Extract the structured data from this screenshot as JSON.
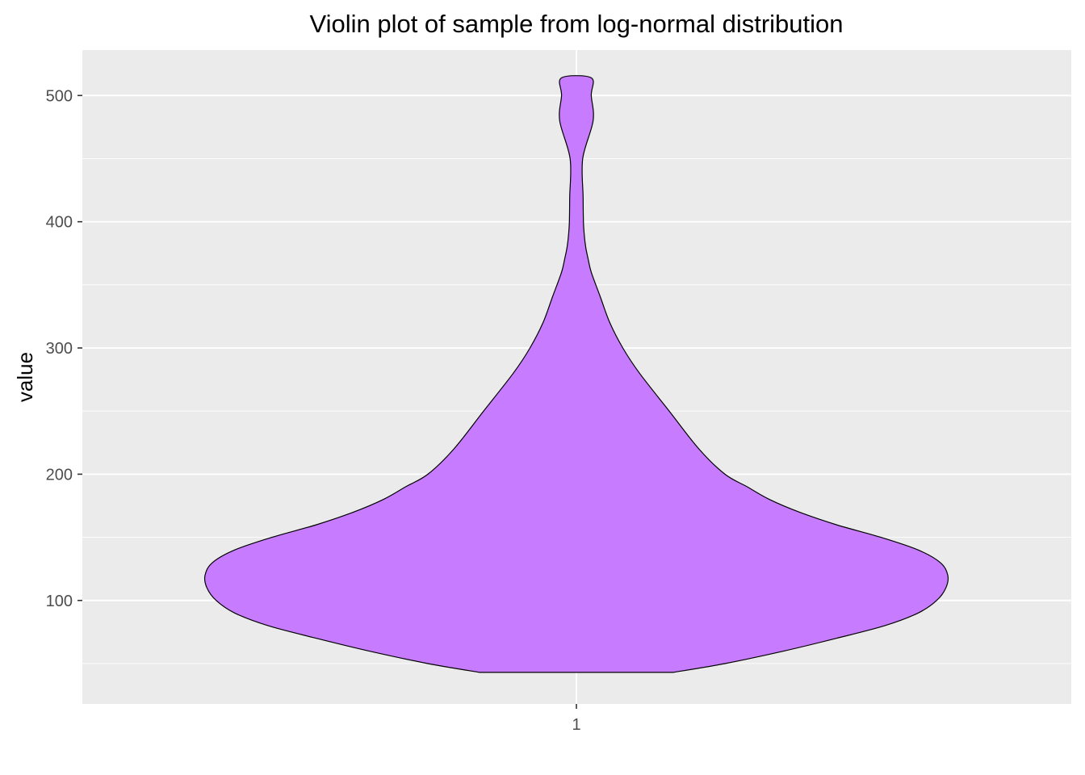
{
  "chart_data": {
    "type": "violin",
    "title": "Violin plot of sample from log-normal distribution",
    "xlabel": "",
    "ylabel": "value",
    "categories": [
      "1"
    ],
    "ylim": [
      18,
      536
    ],
    "y_ticks": [
      100,
      200,
      300,
      400,
      500
    ],
    "grid": true,
    "fill_color": "#c77cff",
    "outline_color": "#000000",
    "panel_color": "#ebebeb",
    "series": [
      {
        "category": "1",
        "density_profile": [
          [
            43,
            0.26
          ],
          [
            50,
            0.4
          ],
          [
            60,
            0.56
          ],
          [
            70,
            0.7
          ],
          [
            80,
            0.83
          ],
          [
            90,
            0.92
          ],
          [
            100,
            0.97
          ],
          [
            110,
            0.995
          ],
          [
            120,
            1.0
          ],
          [
            130,
            0.98
          ],
          [
            140,
            0.92
          ],
          [
            150,
            0.82
          ],
          [
            160,
            0.7
          ],
          [
            170,
            0.6
          ],
          [
            180,
            0.52
          ],
          [
            190,
            0.46
          ],
          [
            200,
            0.4
          ],
          [
            220,
            0.33
          ],
          [
            250,
            0.25
          ],
          [
            280,
            0.17
          ],
          [
            300,
            0.125
          ],
          [
            320,
            0.09
          ],
          [
            340,
            0.065
          ],
          [
            360,
            0.04
          ],
          [
            370,
            0.032
          ],
          [
            380,
            0.025
          ],
          [
            390,
            0.021
          ],
          [
            400,
            0.019
          ],
          [
            420,
            0.018
          ],
          [
            450,
            0.017
          ],
          [
            480,
            0.045
          ],
          [
            500,
            0.04
          ],
          [
            514,
            0.04
          ]
        ]
      }
    ]
  }
}
